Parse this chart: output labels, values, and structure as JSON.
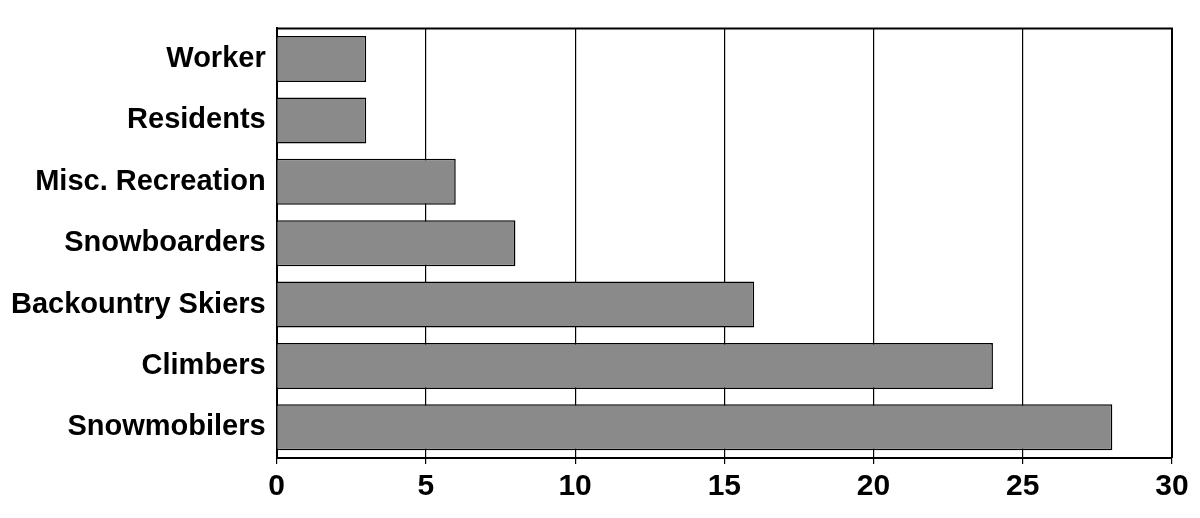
{
  "chart_data": {
    "type": "bar",
    "orientation": "horizontal",
    "categories": [
      "Worker",
      "Residents",
      "Misc. Recreation",
      "Snowboarders",
      "Backountry Skiers",
      "Climbers",
      "Snowmobilers"
    ],
    "values": [
      3,
      3,
      6,
      8,
      16,
      24,
      28
    ],
    "color": "#8a8a8a",
    "xlim": [
      0,
      30
    ],
    "xticks": [
      0,
      5,
      10,
      15,
      20,
      25,
      30
    ],
    "grid": "x",
    "legend": false
  }
}
